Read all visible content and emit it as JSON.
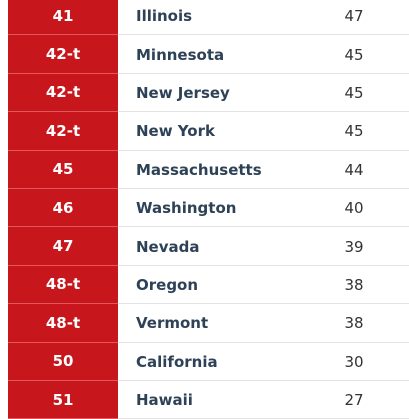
{
  "table": {
    "rows": [
      [
        "41",
        "Illinois",
        47
      ],
      [
        "42-t",
        "Minnesota",
        45
      ],
      [
        "42-t",
        "New Jersey",
        45
      ],
      [
        "42-t",
        "New York",
        45
      ],
      [
        "45",
        "Massachusetts",
        44
      ],
      [
        "46",
        "Washington",
        40
      ],
      [
        "47",
        "Nevada",
        39
      ],
      [
        "48-t",
        "Oregon",
        38
      ],
      [
        "48-t",
        "Vermont",
        38
      ],
      [
        "50",
        "California",
        30
      ],
      [
        "51",
        "Hawaii",
        27
      ]
    ]
  }
}
